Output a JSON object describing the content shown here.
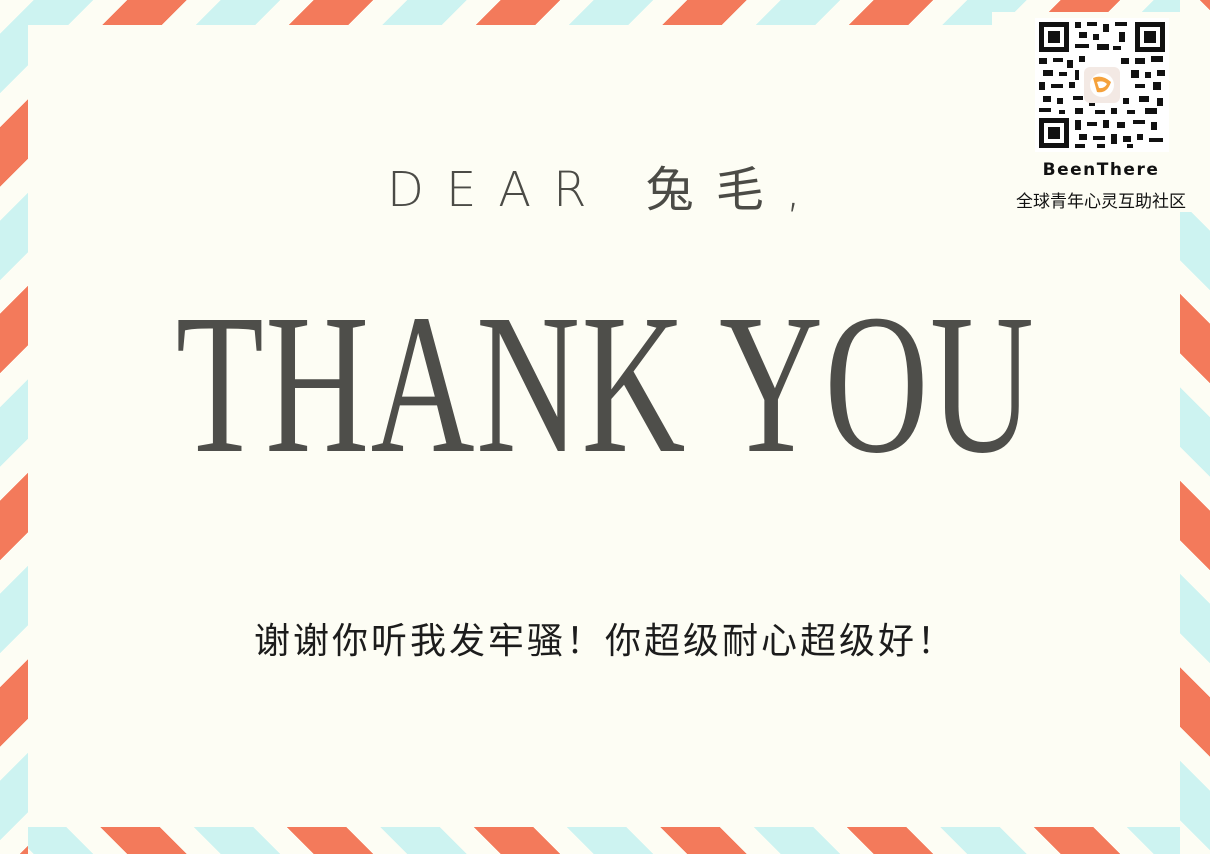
{
  "card": {
    "greeting": "DEAR 兔毛,",
    "headline": "THANK YOU",
    "message": "谢谢你听我发牢骚！你超级耐心超级好！"
  },
  "qr_panel": {
    "brand": "BeenThere",
    "slogan": "全球青年心灵互助社区",
    "logo_icon": "beenthere-logo-icon"
  },
  "colors": {
    "background": "#fdfdf4",
    "stripe_red": "#f37a5b",
    "stripe_blue": "#cdf3f1",
    "headline_text": "#4e4e4a",
    "message_text": "#1c1c1c"
  }
}
